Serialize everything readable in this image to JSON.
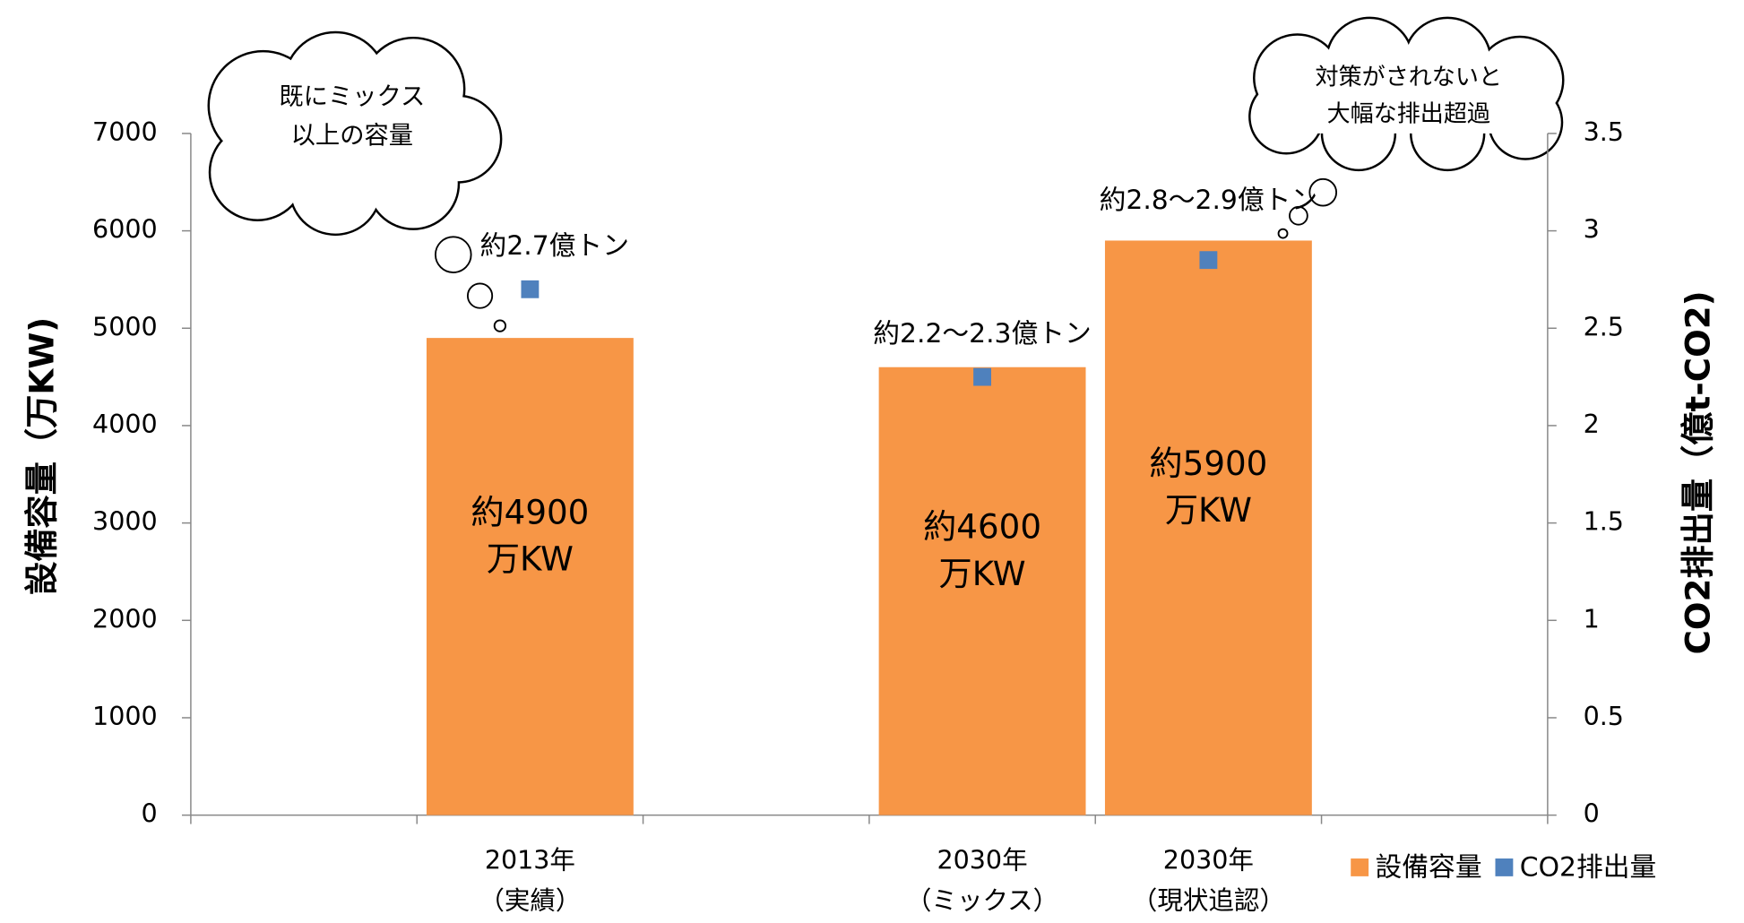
{
  "chart_data": {
    "type": "bar",
    "categories": [
      null,
      [
        "2013年",
        "（実績）"
      ],
      null,
      [
        "2030年",
        "（ミックス）"
      ],
      [
        "2030年",
        "（現状追認）"
      ],
      null
    ],
    "series": [
      {
        "name": "設備容量",
        "color": "#f79646",
        "type": "bar",
        "values": [
          null,
          4900,
          null,
          4600,
          5900,
          null
        ],
        "value_labels": [
          null,
          [
            "約4900",
            "万KW"
          ],
          null,
          [
            "約4600",
            "万KW"
          ],
          [
            "約5900",
            "万KW"
          ],
          null
        ]
      },
      {
        "name": "CO2排出量",
        "color": "#4f81bd",
        "type": "scatter",
        "axis": "y2",
        "values": [
          null,
          2.7,
          null,
          2.25,
          2.85,
          null
        ],
        "value_labels": [
          null,
          "約2.7億トン",
          null,
          "約2.2〜2.3億トン",
          "約2.8〜2.9億トン",
          null
        ]
      }
    ],
    "y_label": "設備容量（万KW)",
    "y2_label": "CO2排出量（億t-CO2)",
    "ylim": [
      0,
      7000
    ],
    "yticks": [
      0,
      1000,
      2000,
      3000,
      4000,
      5000,
      6000,
      7000
    ],
    "y2lim": [
      0,
      3.5
    ],
    "y2ticks": [
      0,
      0.5,
      1,
      1.5,
      2,
      2.5,
      3,
      3.5
    ],
    "annotations": [
      [
        "既にミックス",
        "以上の容量"
      ],
      [
        "対策がされないと",
        "大幅な排出超過"
      ]
    ],
    "legend": "bottom-right"
  }
}
